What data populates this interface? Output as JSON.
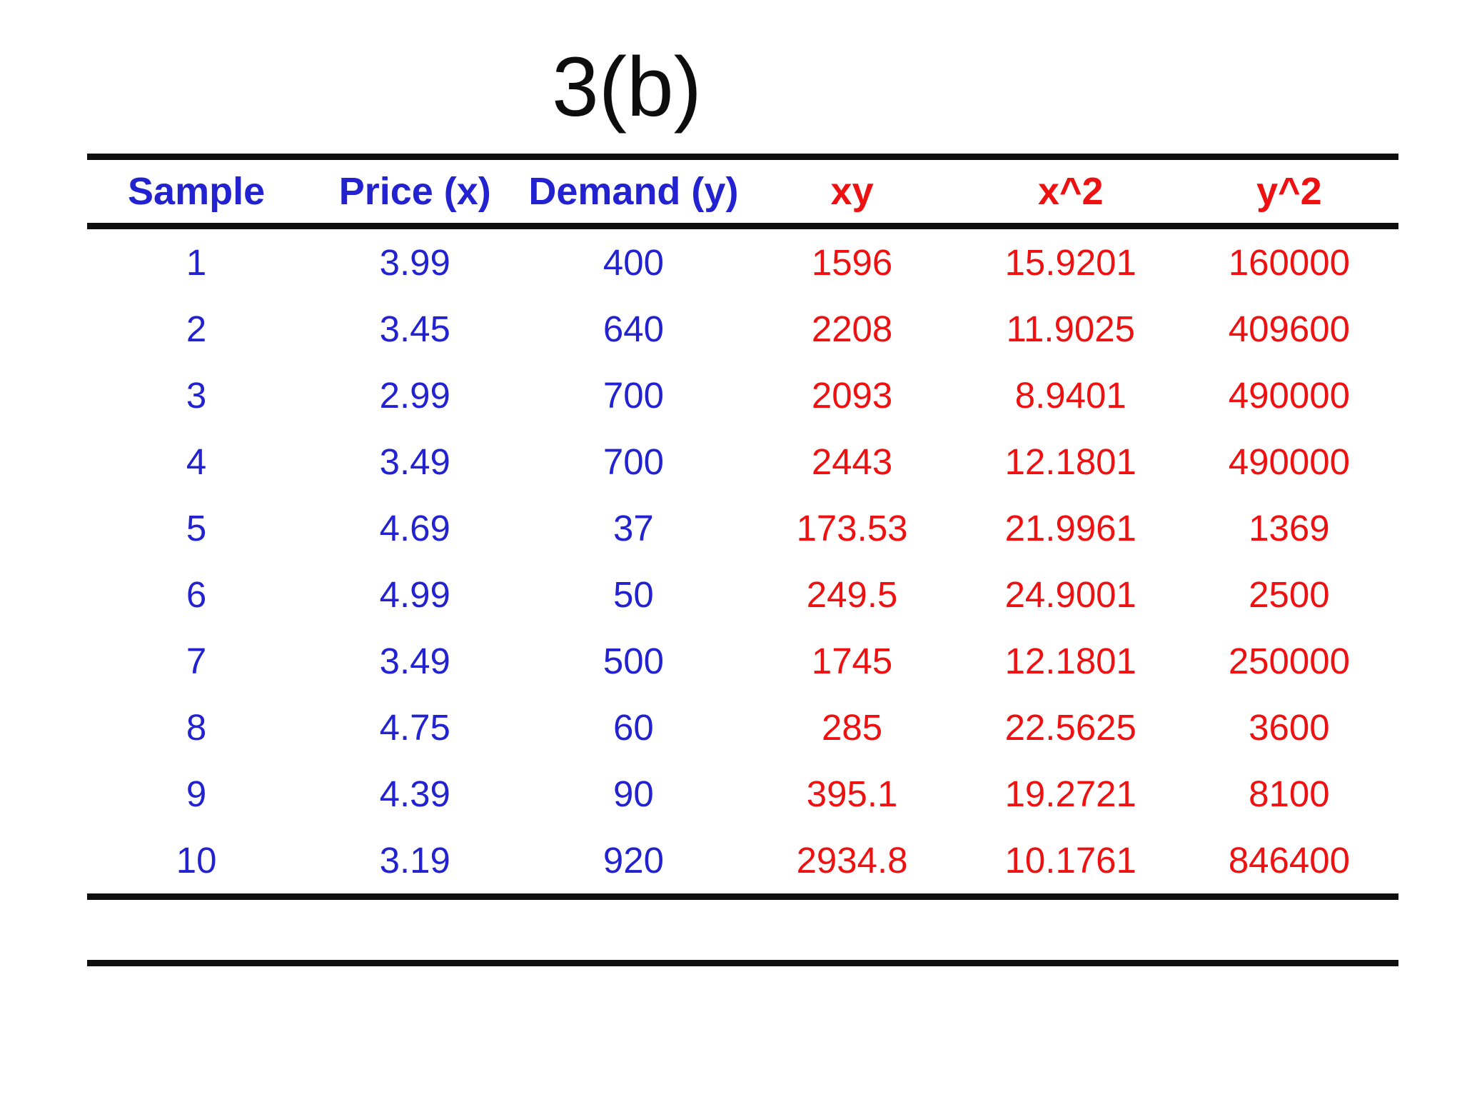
{
  "title": "3(b)",
  "colors": {
    "blue": "#2222d0",
    "red": "#ee1111",
    "rule": "#0f0f0f",
    "background": "#ffffff"
  },
  "table": {
    "columns": [
      {
        "key": "sample",
        "label": "Sample",
        "color": "blue"
      },
      {
        "key": "price-x",
        "label": "Price (x)",
        "color": "blue"
      },
      {
        "key": "demand-y",
        "label": "Demand (y)",
        "color": "blue"
      },
      {
        "key": "xy",
        "label": "xy",
        "color": "red"
      },
      {
        "key": "x-squared",
        "label": "x^2",
        "color": "red"
      },
      {
        "key": "y-squared",
        "label": "y^2",
        "color": "red"
      }
    ],
    "rows": [
      [
        "1",
        "3.99",
        "400",
        "1596",
        "15.9201",
        "160000"
      ],
      [
        "2",
        "3.45",
        "640",
        "2208",
        "11.9025",
        "409600"
      ],
      [
        "3",
        "2.99",
        "700",
        "2093",
        "8.9401",
        "490000"
      ],
      [
        "4",
        "3.49",
        "700",
        "2443",
        "12.1801",
        "490000"
      ],
      [
        "5",
        "4.69",
        "37",
        "173.53",
        "21.9961",
        "1369"
      ],
      [
        "6",
        "4.99",
        "50",
        "249.5",
        "24.9001",
        "2500"
      ],
      [
        "7",
        "3.49",
        "500",
        "1745",
        "12.1801",
        "250000"
      ],
      [
        "8",
        "4.75",
        "60",
        "285",
        "22.5625",
        "3600"
      ],
      [
        "9",
        "4.39",
        "90",
        "395.1",
        "19.2721",
        "8100"
      ],
      [
        "10",
        "3.19",
        "920",
        "2934.8",
        "10.1761",
        "846400"
      ]
    ]
  },
  "chart_data": {
    "type": "table",
    "title": "3(b)",
    "columns": [
      "Sample",
      "Price (x)",
      "Demand (y)",
      "xy",
      "x^2",
      "y^2"
    ],
    "rows": [
      [
        1,
        3.99,
        400,
        1596,
        15.9201,
        160000
      ],
      [
        2,
        3.45,
        640,
        2208,
        11.9025,
        409600
      ],
      [
        3,
        2.99,
        700,
        2093,
        8.9401,
        490000
      ],
      [
        4,
        3.49,
        700,
        2443,
        12.1801,
        490000
      ],
      [
        5,
        4.69,
        37,
        173.53,
        21.9961,
        1369
      ],
      [
        6,
        4.99,
        50,
        249.5,
        24.9001,
        2500
      ],
      [
        7,
        3.49,
        500,
        1745,
        12.1801,
        250000
      ],
      [
        8,
        4.75,
        60,
        285,
        22.5625,
        3600
      ],
      [
        9,
        4.39,
        90,
        395.1,
        19.2721,
        8100
      ],
      [
        10,
        3.19,
        920,
        2934.8,
        10.1761,
        846400
      ]
    ]
  }
}
